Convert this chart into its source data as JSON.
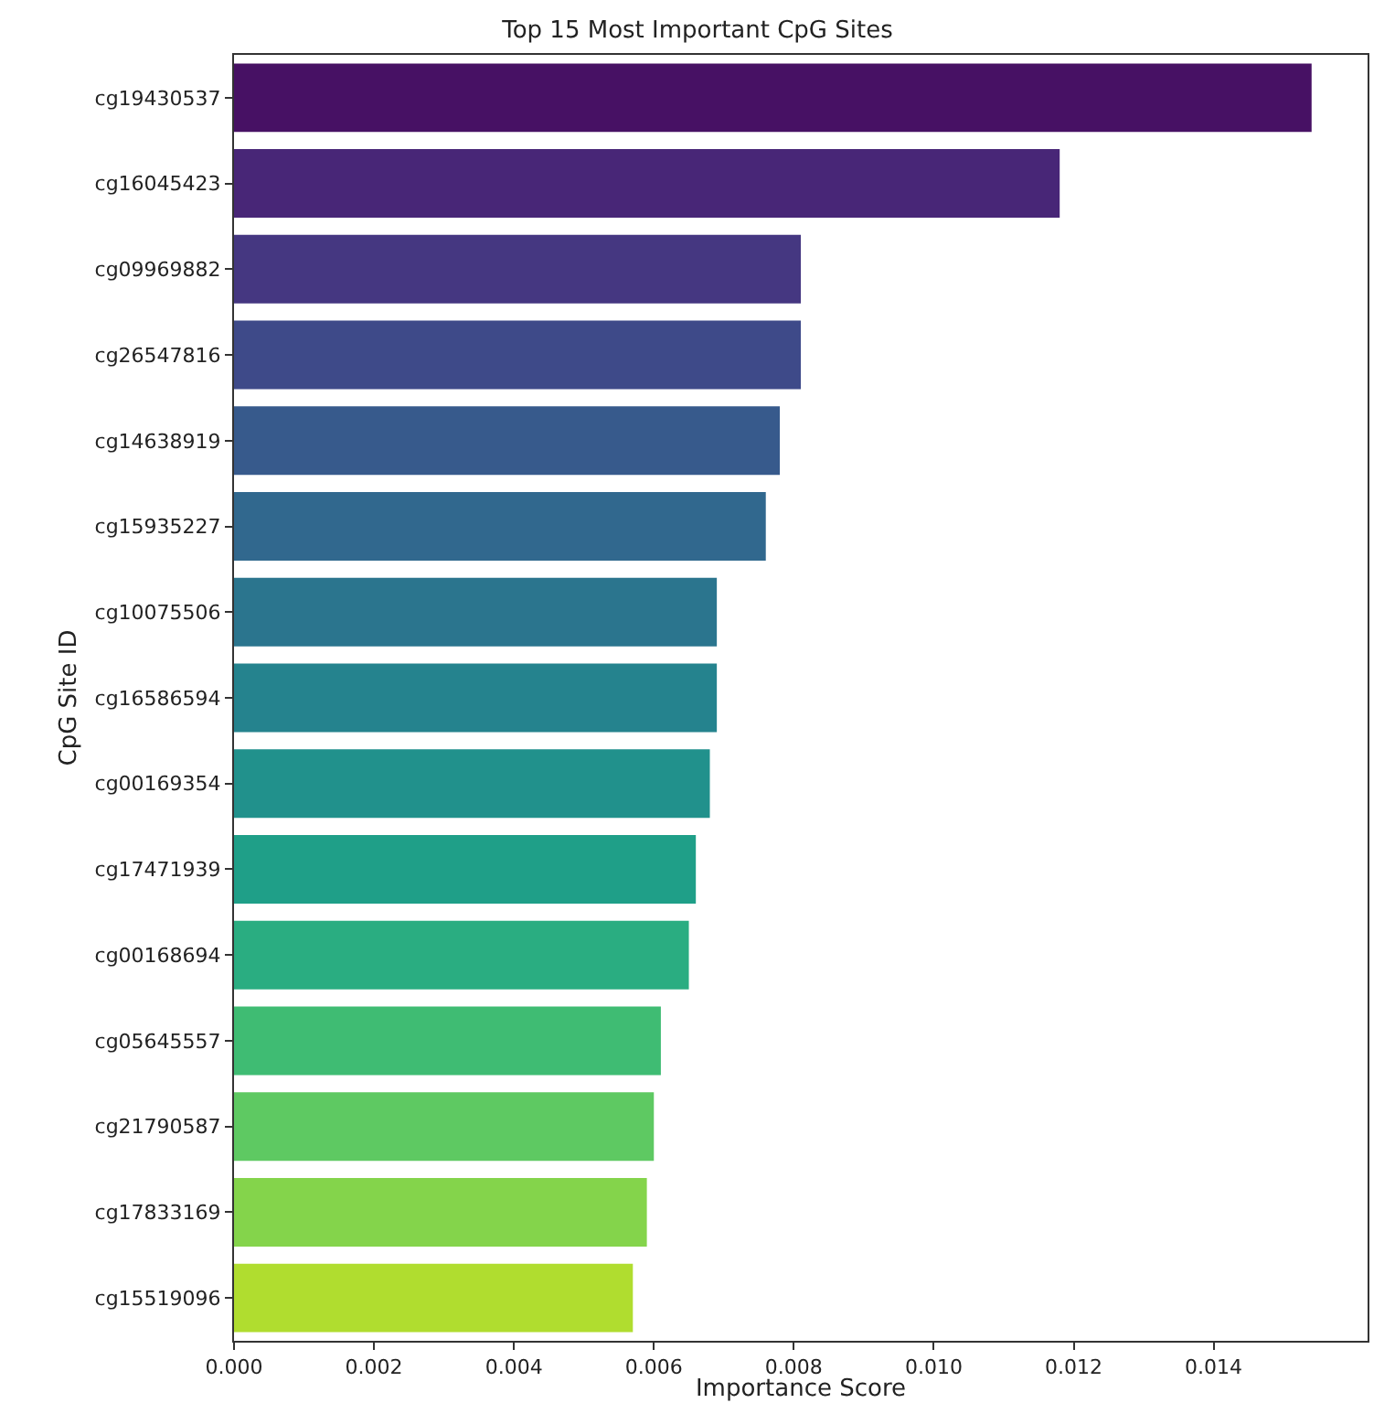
{
  "chart_data": {
    "type": "bar",
    "orientation": "horizontal",
    "title": "Top 15 Most Important CpG Sites",
    "xlabel": "Importance Score",
    "ylabel": "CpG Site ID",
    "categories": [
      "cg19430537",
      "cg16045423",
      "cg09969882",
      "cg26547816",
      "cg14638919",
      "cg15935227",
      "cg10075506",
      "cg16586594",
      "cg00169354",
      "cg17471939",
      "cg00168694",
      "cg05645557",
      "cg21790587",
      "cg17833169",
      "cg15519096"
    ],
    "values": [
      0.0154,
      0.0118,
      0.0081,
      0.0081,
      0.0078,
      0.0076,
      0.0069,
      0.0069,
      0.0068,
      0.0066,
      0.0065,
      0.0061,
      0.006,
      0.0059,
      0.0057
    ],
    "colors": [
      "#471164",
      "#482677",
      "#453781",
      "#3e4a89",
      "#375a8c",
      "#31688e",
      "#2b758e",
      "#25838e",
      "#21918c",
      "#1f9f88",
      "#2aad81",
      "#3fbc73",
      "#5ec962",
      "#84d44b",
      "#b0dd2f"
    ],
    "xlim": [
      0,
      0.0162
    ],
    "xticks": [
      {
        "value": 0,
        "label": "0.000"
      },
      {
        "value": 0.002,
        "label": "0.002"
      },
      {
        "value": 0.004,
        "label": "0.004"
      },
      {
        "value": 0.006,
        "label": "0.006"
      },
      {
        "value": 0.008,
        "label": "0.008"
      },
      {
        "value": 0.01,
        "label": "0.010"
      },
      {
        "value": 0.012,
        "label": "0.012"
      },
      {
        "value": 0.014,
        "label": "0.014"
      }
    ]
  }
}
